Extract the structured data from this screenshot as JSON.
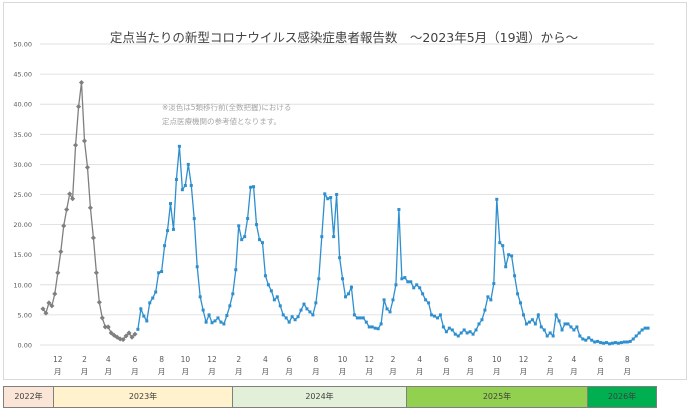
{
  "title": "定点当たりの新型コロナウイルス感染症患者報告数　～2023年5月（19週）から～",
  "note_lines": [
    "※淡色は5類移行前(全数把握)における",
    "定点医療機関の参考値となります。"
  ],
  "year_labels": [
    "2022年",
    "2023年",
    "2024年",
    "2025年",
    "2026年"
  ],
  "colors": {
    "series_before": "#7f7f7f",
    "series_after": "#2e8fce",
    "grid": "#d9d9d9",
    "axis_text": "#595959",
    "year_fills": [
      "#fbe5d6",
      "#fff2cc",
      "#e2f0d9",
      "#92d050",
      "#00b050"
    ]
  },
  "chart_data": {
    "type": "line",
    "title": "定点当たりの新型コロナウイルス感染症患者報告数　～2023年5月（19週）から～",
    "xlabel": "",
    "ylabel": "",
    "ylim": [
      0,
      50
    ],
    "y_ticks": [
      "0.00",
      "5.00",
      "10.00",
      "15.00",
      "20.00",
      "25.00",
      "30.00",
      "35.00",
      "40.00",
      "45.00",
      "50.00"
    ],
    "x_tick_labels": [
      "12月",
      "2月",
      "4月",
      "6月",
      "8月",
      "10月",
      "12月",
      "2月",
      "4月",
      "6月",
      "8月",
      "10月",
      "12月",
      "2月",
      "4月",
      "6月",
      "8月",
      "10月",
      "12月",
      "2月",
      "4月",
      "6月",
      "8月"
    ],
    "x_tick_weeks": [
      5,
      14,
      22,
      31,
      40,
      48,
      57,
      66,
      75,
      83,
      92,
      101,
      110,
      118,
      127,
      136,
      144,
      153,
      162,
      171,
      179,
      188,
      197
    ],
    "grid": true,
    "series": [
      {
        "values": [
          6.0,
          5.3,
          7.0,
          6.5,
          8.5,
          12.0,
          15.5,
          19.8,
          22.5,
          25.1,
          24.3,
          33.2,
          39.6,
          43.6,
          33.9,
          29.5,
          22.8,
          17.8,
          12.0,
          7.1,
          4.5,
          3.0,
          3.0,
          2.0,
          1.6,
          1.3,
          1.0,
          0.9,
          1.5,
          2.0,
          1.3,
          1.8
        ]
      },
      {
        "values": [
          2.6,
          6.0,
          4.8,
          4.0,
          7.0,
          7.8,
          8.8,
          12.0,
          12.2,
          16.5,
          19.0,
          23.5,
          19.2,
          27.5,
          33.0,
          25.8,
          26.5,
          30.0,
          26.5,
          21.0,
          13.0,
          8.0,
          5.8,
          3.8,
          5.0,
          3.7,
          4.0,
          4.5,
          3.8,
          3.5,
          4.9,
          6.5,
          8.5,
          12.5,
          19.8,
          17.5,
          18.0,
          21.0,
          26.2,
          26.3,
          20.0,
          17.5,
          17.0,
          11.5,
          10.0,
          9.0,
          7.5,
          8.0,
          6.5,
          5.0,
          4.5,
          3.8,
          4.7,
          4.2,
          4.7,
          5.8,
          6.8,
          6.0,
          5.5,
          5.0,
          7.0,
          11.0,
          18.0,
          25.1,
          24.3,
          24.5,
          18.0,
          25.0,
          14.5,
          11.0,
          8.0,
          8.5,
          9.6,
          5.0,
          4.5,
          4.5,
          4.5,
          3.8,
          3.0,
          3.0,
          2.8,
          2.7,
          3.5,
          7.5,
          6.0,
          5.5,
          7.5,
          10.0,
          22.5,
          11.0,
          11.2,
          10.5,
          10.5,
          9.5,
          10.0,
          9.5,
          8.5,
          7.5,
          7.0,
          5.0,
          4.8,
          4.5,
          5.0,
          3.0,
          2.2,
          2.8,
          2.5,
          1.8,
          1.5,
          2.0,
          2.5,
          2.0,
          2.2,
          1.8,
          2.5,
          3.5,
          4.2,
          5.8,
          8.0,
          7.5,
          10.2,
          24.2,
          17.0,
          16.5,
          13.0,
          15.0,
          14.8,
          11.5,
          8.5,
          7.0,
          5.0,
          3.5,
          3.8,
          4.2,
          3.5,
          5.0,
          3.0,
          2.5,
          1.5,
          2.0,
          1.5,
          5.0,
          4.0,
          2.5,
          3.5,
          3.5,
          3.0,
          2.5,
          3.0,
          1.5,
          1.0,
          0.8,
          1.2,
          0.8,
          0.5,
          0.6,
          0.4,
          0.3,
          0.4,
          0.2,
          0.3,
          0.4,
          0.3,
          0.4,
          0.5,
          0.5,
          0.6,
          1.0,
          1.5,
          2.0,
          2.5,
          2.8,
          2.8
        ]
      }
    ]
  }
}
